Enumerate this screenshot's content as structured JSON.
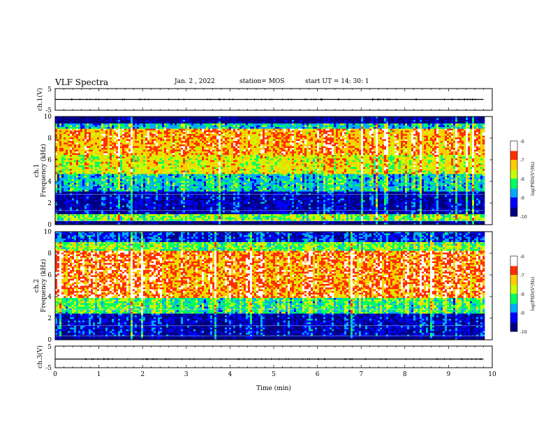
{
  "header": {
    "title": "VLF Spectra",
    "date": "Jan. 2 , 2022",
    "station": "station= MOS",
    "start": "start UT = 14: 30: 1"
  },
  "chart_data": [
    {
      "type": "line",
      "panel": "ch1-voltage",
      "ylabel": "ch.1(V)",
      "ylim": [
        -5,
        5
      ],
      "yticks": [
        "5",
        "-5"
      ],
      "x": [
        0,
        9.8
      ],
      "y": [
        0,
        0
      ],
      "color": "#000000"
    },
    {
      "type": "heatmap",
      "panel": "ch1-spectrogram",
      "ylabel": "ch.1\nFrequency (kHz)",
      "ylim": [
        0,
        10
      ],
      "yticks": [
        "0",
        "2",
        "4",
        "6",
        "8",
        "10"
      ],
      "xlim": [
        0,
        10
      ],
      "data_extent_min": 9.8,
      "frequency_bands_khz": [
        {
          "from": 0,
          "to": 0.4,
          "level": -10
        },
        {
          "from": 0.4,
          "to": 1.0,
          "level": -8
        },
        {
          "from": 1.0,
          "to": 3.0,
          "level": -9.6
        },
        {
          "from": 3.0,
          "to": 4.6,
          "level": -8.6
        },
        {
          "from": 4.6,
          "to": 6.5,
          "level": -7.6
        },
        {
          "from": 6.5,
          "to": 8.8,
          "level": -7.1
        },
        {
          "from": 8.8,
          "to": 9.4,
          "level": -8.6
        },
        {
          "from": 9.4,
          "to": 10,
          "level": -10
        }
      ],
      "colorbar": {
        "label": "log(PSD)(V²/Hz)",
        "ticks": [
          "-6",
          "-7",
          "-8",
          "-9",
          "-10"
        ],
        "range": [
          -10,
          -6
        ]
      }
    },
    {
      "type": "heatmap",
      "panel": "ch2-spectrogram",
      "ylabel": "ch.2\nFrequency (kHz)",
      "ylim": [
        0,
        10
      ],
      "yticks": [
        "0",
        "2",
        "4",
        "6",
        "8",
        "10"
      ],
      "xlim": [
        0,
        10
      ],
      "data_extent_min": 9.8,
      "frequency_bands_khz": [
        {
          "from": 0,
          "to": 0.4,
          "level": -10
        },
        {
          "from": 0.4,
          "to": 2.4,
          "level": -9.5
        },
        {
          "from": 2.4,
          "to": 3.8,
          "level": -8.2
        },
        {
          "from": 3.8,
          "to": 8.2,
          "level": -6.9
        },
        {
          "from": 8.2,
          "to": 9.0,
          "level": -8.0
        },
        {
          "from": 9.0,
          "to": 10,
          "level": -9.2
        }
      ],
      "colorbar": {
        "label": "log(PSD)(V²/Hz)",
        "ticks": [
          "-6",
          "-7",
          "-8",
          "-9",
          "-10"
        ],
        "range": [
          -10,
          -6
        ]
      }
    },
    {
      "type": "line",
      "panel": "ch3-voltage",
      "ylabel": "ch.3(V)",
      "ylim": [
        -5,
        5
      ],
      "yticks": [
        "5",
        "-5"
      ],
      "x": [
        0,
        9.8
      ],
      "y": [
        -1,
        -1
      ],
      "color": "#000000"
    }
  ],
  "xaxis": {
    "label": "Time (min)",
    "range": [
      0,
      10
    ],
    "ticks": [
      "0",
      "1",
      "2",
      "3",
      "4",
      "5",
      "6",
      "7",
      "8",
      "9",
      "10"
    ]
  },
  "colorscale": [
    "#000080",
    "#0000ff",
    "#00aaff",
    "#00ff60",
    "#c8ff00",
    "#ffcc00",
    "#ff3000",
    "#ffffff"
  ]
}
